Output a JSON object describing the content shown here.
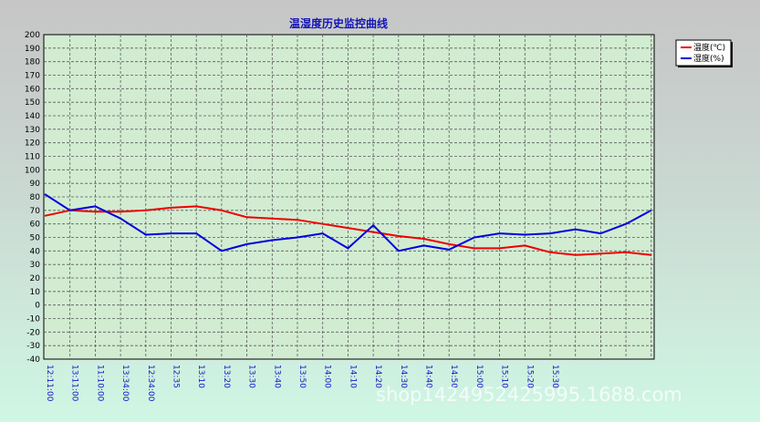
{
  "chart_data": {
    "type": "line",
    "title": "温湿度历史监控曲线",
    "categories": [
      "12:11:00",
      "13:11:00",
      "11:10:00",
      "13:34:00",
      "12:34:00",
      "12:35",
      "13:10",
      "13:20",
      "13:30",
      "13:40",
      "13:50",
      "14:00",
      "14:10",
      "14:20",
      "14:30",
      "14:40",
      "14:50",
      "15:00",
      "15:10",
      "15:20",
      "15:30",
      "",
      "",
      "",
      ""
    ],
    "series": [
      {
        "name": "温度(℃)",
        "color": "#ee0000",
        "values": [
          66,
          70,
          69,
          69,
          70,
          72,
          73,
          70,
          65,
          64,
          63,
          60,
          57,
          54,
          51,
          49,
          45,
          42,
          42,
          44,
          39,
          37,
          38,
          39,
          37
        ]
      },
      {
        "name": "湿度(%)",
        "color": "#0000dd",
        "values": [
          82,
          70,
          73,
          64,
          52,
          53,
          53,
          40,
          45,
          48,
          50,
          53,
          42,
          59,
          40,
          44,
          41,
          50,
          53,
          52,
          53,
          56,
          53,
          60,
          70
        ]
      }
    ],
    "ylim": [
      -40,
      200
    ],
    "yticks": [
      200,
      190,
      180,
      170,
      160,
      150,
      140,
      130,
      120,
      110,
      100,
      90,
      80,
      70,
      60,
      50,
      40,
      30,
      20,
      10,
      0,
      -10,
      -20,
      -30,
      -40
    ],
    "grid": true,
    "legend_position": "top-right",
    "plot_background": "#d2ecd2"
  },
  "watermark": "shop1424952425995.1688.com"
}
